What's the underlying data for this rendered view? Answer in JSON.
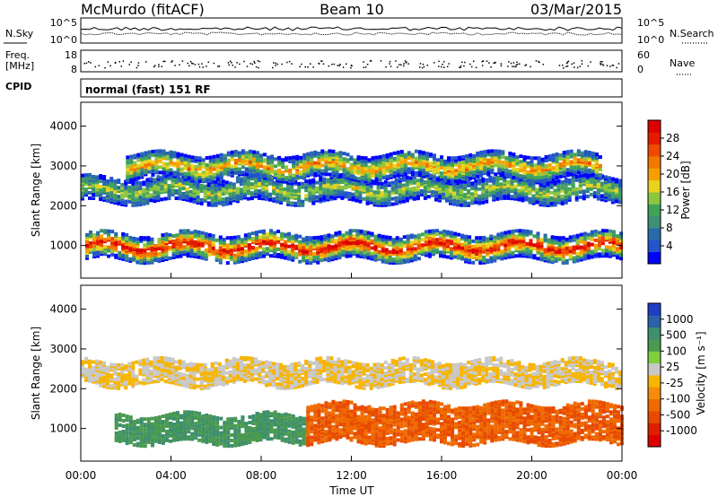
{
  "header": {
    "station": "McMurdo (fitACF)",
    "beam": "Beam 10",
    "date": "03/Mar/2015"
  },
  "top_panels": {
    "nsky_label": "N.Sky",
    "nsearch_label": "N.Search",
    "freq_label": "Freq.",
    "freq_unit": "[MHz]",
    "nave_label": "Nave",
    "cpid_label": "CPID",
    "cpid_value": "normal (fast) 151 RF",
    "noise_ticks": [
      "10^5",
      "10^0"
    ],
    "freq_ticks": [
      "18",
      "8"
    ],
    "nave_ticks": [
      "60",
      "0"
    ]
  },
  "chart_data": [
    {
      "type": "heatmap",
      "name": "power",
      "x_ticks": [
        "00:00",
        "04:00",
        "08:00",
        "12:00",
        "16:00",
        "20:00",
        "00:00"
      ],
      "xlabel": "Time UT",
      "ylabel": "Slant Range [km]",
      "y_ticks": [
        1000,
        2000,
        3000,
        4000
      ],
      "ylim": [
        180,
        4600
      ],
      "xlim_hours": [
        0,
        24
      ],
      "colorbar": {
        "label": "Power [dB]",
        "ticks": [
          4,
          8,
          12,
          16,
          20,
          24,
          28
        ],
        "colors": [
          "#0000ff",
          "#2255cc",
          "#2a6aa8",
          "#3f8f74",
          "#3fa35a",
          "#8cc63f",
          "#e8d21f",
          "#f5a000",
          "#f07800",
          "#ee4a00",
          "#e61a00",
          "#dd0000"
        ]
      },
      "structures": [
        {
          "start": 0.2,
          "end": 24.0,
          "range_low": 650,
          "range_high": 1300,
          "peak_db": 28
        },
        {
          "start": 0.0,
          "end": 24.0,
          "range_low": 2100,
          "range_high": 2700,
          "peak_db": 14
        },
        {
          "start": 2.0,
          "end": 23.0,
          "range_low": 2700,
          "range_high": 3300,
          "peak_db": 20
        }
      ]
    },
    {
      "type": "heatmap",
      "name": "velocity",
      "x_ticks": [
        "00:00",
        "04:00",
        "08:00",
        "12:00",
        "16:00",
        "20:00",
        "00:00"
      ],
      "xlabel": "Time UT",
      "ylabel": "Slant Range [km]",
      "y_ticks": [
        1000,
        2000,
        3000,
        4000
      ],
      "ylim": [
        180,
        4600
      ],
      "xlim_hours": [
        0,
        24
      ],
      "colorbar": {
        "label": "Velocity [m s⁻¹]",
        "ticks": [
          1000,
          500,
          100,
          25,
          -25,
          -100,
          -500,
          -1000
        ],
        "colors": [
          "#1e3fc4",
          "#2d62a8",
          "#3f8f6e",
          "#4a9a4f",
          "#7ecf3f",
          "#c8c8c8",
          "#f7b400",
          "#f58d0a",
          "#ef6a00",
          "#e84a00",
          "#e01e00",
          "#dd0000"
        ]
      },
      "structures": [
        {
          "start": 1.5,
          "end": 10.0,
          "range_low": 650,
          "range_high": 1350,
          "velocity": 300
        },
        {
          "start": 10.0,
          "end": 24.0,
          "range_low": 650,
          "range_high": 1600,
          "velocity": -200
        },
        {
          "start": 0.0,
          "end": 24.0,
          "range_low": 2100,
          "range_high": 2700,
          "velocity": 0
        }
      ]
    }
  ]
}
